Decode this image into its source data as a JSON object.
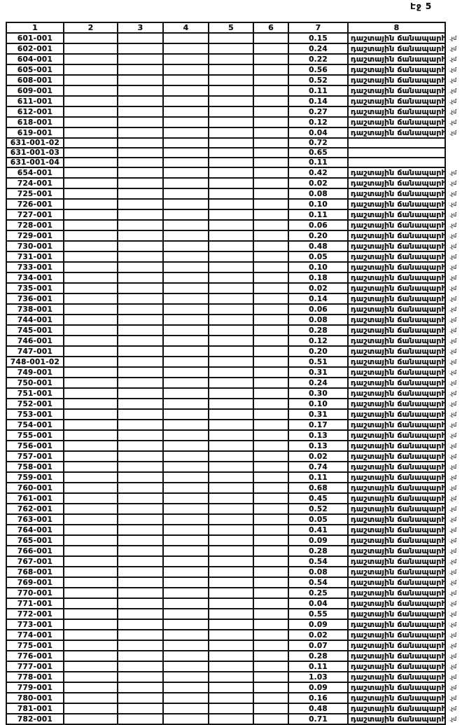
{
  "page_label": "Էջ 5",
  "table": {
    "headers": [
      "1",
      "2",
      "3",
      "4",
      "5",
      "6",
      "7",
      "8"
    ],
    "empty_columns": [
      "2",
      "3",
      "4",
      "5",
      "6"
    ],
    "road_type_label": "դաշտային ճանապարհ",
    "margin_note": ".չմ",
    "rows": [
      [
        "601-001",
        "0.15",
        1
      ],
      [
        "602-001",
        "0.24",
        1
      ],
      [
        "604-001",
        "0.22",
        1
      ],
      [
        "605-001",
        "0.56",
        1
      ],
      [
        "608-001",
        "0.52",
        1
      ],
      [
        "609-001",
        "0.11",
        1
      ],
      [
        "611-001",
        "0.14",
        1
      ],
      [
        "612-001",
        "0.27",
        1
      ],
      [
        "618-001",
        "0.12",
        1
      ],
      [
        "619-001",
        "0.04",
        1
      ],
      [
        "631-001-02",
        "0.72",
        0
      ],
      [
        "631-001-03",
        "0.65",
        0
      ],
      [
        "631-001-04",
        "0.11",
        0
      ],
      [
        "654-001",
        "0.42",
        1
      ],
      [
        "724-001",
        "0.02",
        1
      ],
      [
        "725-001",
        "0.08",
        1
      ],
      [
        "726-001",
        "0.10",
        1
      ],
      [
        "727-001",
        "0.11",
        1
      ],
      [
        "728-001",
        "0.06",
        1
      ],
      [
        "729-001",
        "0.20",
        1
      ],
      [
        "730-001",
        "0.48",
        1
      ],
      [
        "731-001",
        "0.05",
        1
      ],
      [
        "733-001",
        "0.10",
        1
      ],
      [
        "734-001",
        "0.18",
        1
      ],
      [
        "735-001",
        "0.02",
        1
      ],
      [
        "736-001",
        "0.14",
        1
      ],
      [
        "738-001",
        "0.06",
        1
      ],
      [
        "744-001",
        "0.08",
        1
      ],
      [
        "745-001",
        "0.28",
        1
      ],
      [
        "746-001",
        "0.12",
        1
      ],
      [
        "747-001",
        "0.20",
        1
      ],
      [
        "748-001-02",
        "0.51",
        1
      ],
      [
        "749-001",
        "0.31",
        1
      ],
      [
        "750-001",
        "0.24",
        1
      ],
      [
        "751-001",
        "0.30",
        1
      ],
      [
        "752-001",
        "0.10",
        1
      ],
      [
        "753-001",
        "0.31",
        1
      ],
      [
        "754-001",
        "0.17",
        1
      ],
      [
        "755-001",
        "0.13",
        1
      ],
      [
        "756-001",
        "0.13",
        1
      ],
      [
        "757-001",
        "0.02",
        1
      ],
      [
        "758-001",
        "0.74",
        1
      ],
      [
        "759-001",
        "0.11",
        1
      ],
      [
        "760-001",
        "0.68",
        1
      ],
      [
        "761-001",
        "0.45",
        1
      ],
      [
        "762-001",
        "0.52",
        1
      ],
      [
        "763-001",
        "0.05",
        1
      ],
      [
        "764-001",
        "0.41",
        1
      ],
      [
        "765-001",
        "0.09",
        1
      ],
      [
        "766-001",
        "0.28",
        1
      ],
      [
        "767-001",
        "0.54",
        1
      ],
      [
        "768-001",
        "0.08",
        1
      ],
      [
        "769-001",
        "0.54",
        1
      ],
      [
        "770-001",
        "0.25",
        1
      ],
      [
        "771-001",
        "0.04",
        1
      ],
      [
        "772-001",
        "0.55",
        1
      ],
      [
        "773-001",
        "0.09",
        1
      ],
      [
        "774-001",
        "0.02",
        1
      ],
      [
        "775-001",
        "0.07",
        1
      ],
      [
        "776-001",
        "0.28",
        1
      ],
      [
        "777-001",
        "0.11",
        1
      ],
      [
        "778-001",
        "1.03",
        1
      ],
      [
        "779-001",
        "0.09",
        1
      ],
      [
        "780-001",
        "0.16",
        1
      ],
      [
        "781-001",
        "0.48",
        1
      ],
      [
        "782-001",
        "0.71",
        1
      ]
    ]
  }
}
